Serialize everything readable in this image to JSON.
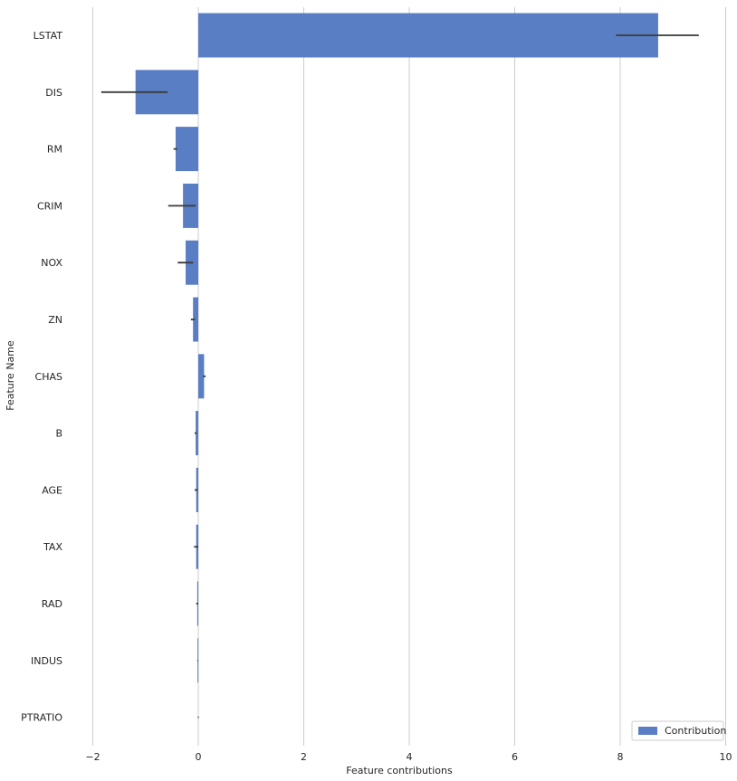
{
  "chart_data": {
    "type": "bar",
    "orientation": "horizontal",
    "title": "",
    "xlabel": "Feature contributions",
    "ylabel": "Feature Name",
    "xlim": [
      -2.2,
      10.1
    ],
    "xticks": [
      -2,
      0,
      2,
      4,
      6,
      8,
      10
    ],
    "xtick_labels": [
      "−2",
      "0",
      "2",
      "4",
      "6",
      "8",
      "10"
    ],
    "grid": "vertical",
    "bar_color": "#5a7ec3",
    "error_color": "#3a3a3a",
    "categories": [
      "LSTAT",
      "DIS",
      "RM",
      "CRIM",
      "NOX",
      "ZN",
      "CHAS",
      "B",
      "AGE",
      "TAX",
      "RAD",
      "INDUS",
      "PTRATIO"
    ],
    "series": [
      {
        "name": "Contribution",
        "values": [
          8.72,
          -1.19,
          -0.43,
          -0.29,
          -0.24,
          -0.1,
          0.11,
          -0.05,
          -0.04,
          -0.04,
          -0.02,
          -0.015,
          0.0
        ],
        "error_low": [
          7.92,
          -1.84,
          -0.47,
          -0.57,
          -0.39,
          -0.14,
          0.09,
          -0.07,
          -0.07,
          -0.08,
          -0.04,
          -0.02,
          -0.01
        ],
        "error_high": [
          9.49,
          -0.58,
          -0.4,
          -0.05,
          -0.1,
          -0.06,
          0.14,
          -0.03,
          -0.01,
          0.0,
          0.0,
          -0.01,
          0.01
        ]
      }
    ],
    "legend": {
      "entries": [
        "Contribution"
      ],
      "placement": "lower-right"
    }
  }
}
